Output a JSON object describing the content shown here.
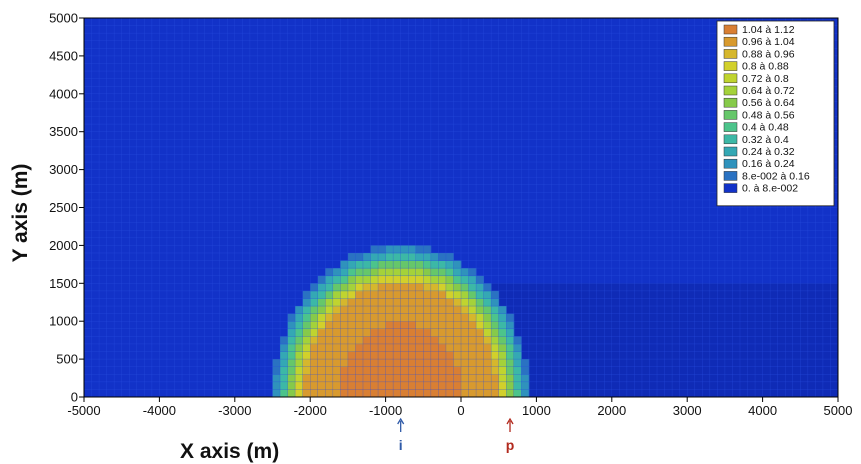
{
  "chart_data": {
    "type": "heatmap",
    "xlabel": "X axis (m)",
    "ylabel": "Y axis (m)",
    "xlim": [
      -5000,
      5000
    ],
    "ylim": [
      0,
      5000
    ],
    "x_ticks": [
      -5000,
      -4000,
      -3000,
      -2000,
      -1000,
      0,
      1000,
      2000,
      3000,
      4000,
      5000
    ],
    "y_ticks": [
      0,
      500,
      1000,
      1500,
      2000,
      2500,
      3000,
      3500,
      4000,
      4500,
      5000
    ],
    "grid": true,
    "legend_position": "top-right",
    "legend": [
      {
        "label": "1.04 à 1.12",
        "color": "#d97f33"
      },
      {
        "label": "0.96 à 1.04",
        "color": "#d89a2e"
      },
      {
        "label": "0.88 à 0.96",
        "color": "#d6b72c"
      },
      {
        "label": "0.8 à 0.88",
        "color": "#d2d02b"
      },
      {
        "label": "0.72 à 0.8",
        "color": "#c0d42f"
      },
      {
        "label": "0.64 à 0.72",
        "color": "#a4d23a"
      },
      {
        "label": "0.56 à 0.64",
        "color": "#86ca4a"
      },
      {
        "label": "0.48 à 0.56",
        "color": "#66c76a"
      },
      {
        "label": "0.4 à 0.48",
        "color": "#4cc48b"
      },
      {
        "label": "0.32 à 0.4",
        "color": "#3cb8a6"
      },
      {
        "label": "0.24 à 0.32",
        "color": "#34a8b4"
      },
      {
        "label": "0.16 à 0.24",
        "color": "#2f92bc"
      },
      {
        "label": "8.e-002 à 0.16",
        "color": "#2a72c2"
      },
      {
        "label": "0. à 8.e-002",
        "color": "#1232c8"
      }
    ],
    "plume": {
      "center_x": -800,
      "radius_x": 1750,
      "radius_y": 2050,
      "max_value": 1.12
    },
    "markers": [
      {
        "label": "i",
        "x": -800,
        "color": "#2f5aa8"
      },
      {
        "label": "p",
        "x": 650,
        "color": "#b22a1e"
      }
    ],
    "colors": {
      "background_field": "#1232c8",
      "grid_line": "#2a4fe0"
    }
  }
}
